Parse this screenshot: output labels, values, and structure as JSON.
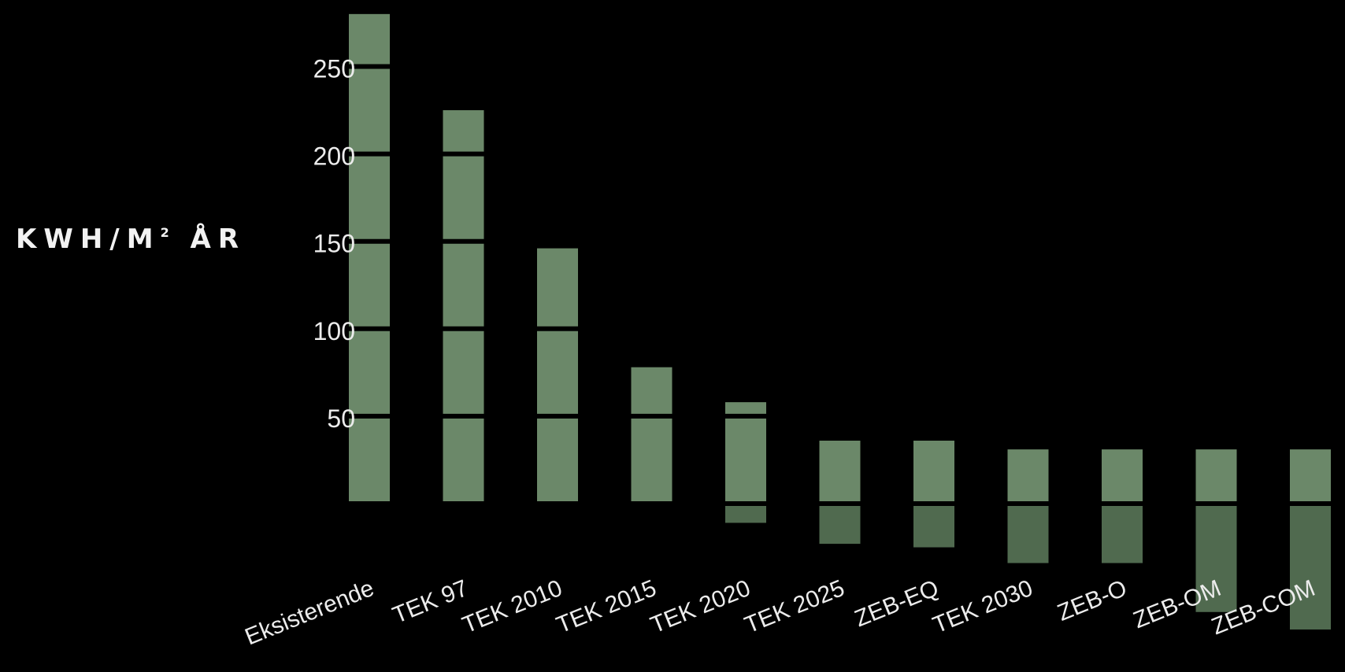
{
  "chart_data": {
    "type": "bar",
    "ylabel": {
      "main": "KWH/M",
      "sup": "2",
      "rest": " ÅR"
    },
    "yticks": [
      50,
      100,
      150,
      200,
      250
    ],
    "categories": [
      "Eksisterende",
      "TEK 97",
      "TEK 2010",
      "TEK 2015",
      "TEK 2020",
      "TEK 2025",
      "ZEB-EQ",
      "TEK 2030",
      "ZEB-O",
      "ZEB-OM",
      "ZEB-COM"
    ],
    "values_positive": [
      280,
      225,
      146,
      78,
      58,
      36,
      36,
      31,
      31,
      31,
      31
    ],
    "values_negative": [
      0,
      0,
      0,
      0,
      -11,
      -23,
      -25,
      -34,
      -34,
      -62,
      -72
    ],
    "ylim": [
      -75,
      285
    ],
    "colors": {
      "positive": "#6b8869",
      "negative": "#506a4f",
      "background": "#000000",
      "gridline": "#000000",
      "text": "#ececec"
    }
  }
}
